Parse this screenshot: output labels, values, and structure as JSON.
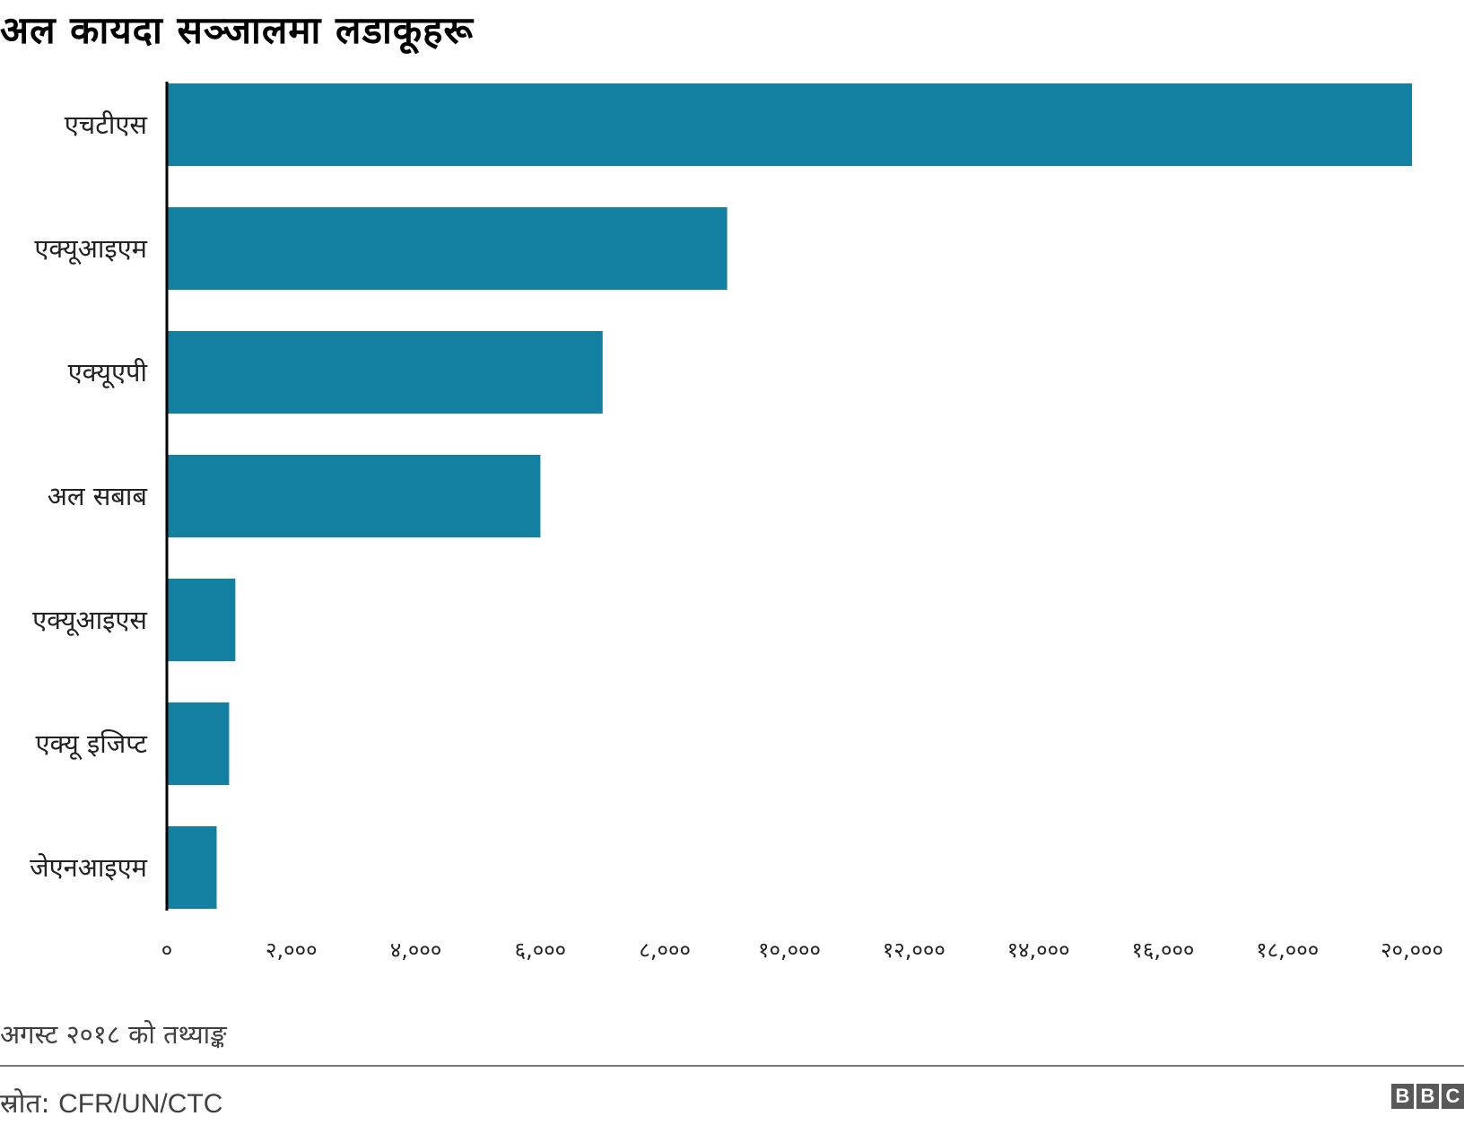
{
  "chart_data": {
    "type": "bar",
    "orientation": "horizontal",
    "title": "अल कायदा सञ्जालमा लडाकूहरू",
    "categories": [
      "एचटीएस",
      "एक्यूआइएम",
      "एक्यूएपी",
      "अल सबाब",
      "एक्यूआइएस",
      "एक्यू इजिप्ट",
      "जेएनआइएम"
    ],
    "values": [
      20000,
      9000,
      7000,
      6000,
      1100,
      1000,
      800
    ],
    "xlim": [
      0,
      20000
    ],
    "x_ticks": [
      0,
      2000,
      4000,
      6000,
      8000,
      10000,
      12000,
      14000,
      16000,
      18000,
      20000
    ],
    "x_tick_labels": [
      "०",
      "२,०००",
      "४,०००",
      "६,०००",
      "८,०००",
      "१०,०००",
      "१२,०००",
      "१४,०००",
      "१६,०००",
      "१८,०००",
      "२०,०००"
    ],
    "grid": false,
    "bar_color": "#1380a1",
    "footnote": "अगस्ट २०१८ को तथ्याङ्क"
  },
  "source": {
    "label": "स्रोत:",
    "text": "CFR/UN/CTC"
  },
  "logo": [
    "B",
    "B",
    "C"
  ]
}
